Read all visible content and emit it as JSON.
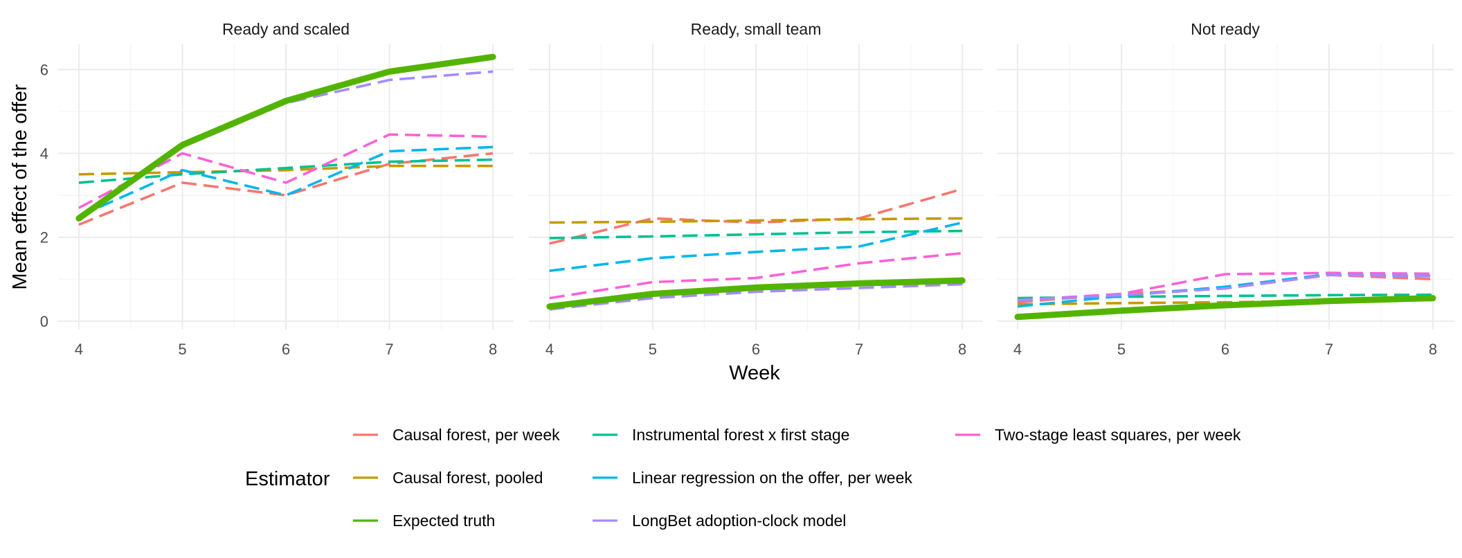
{
  "chart_data": {
    "type": "line",
    "xlabel": "Week",
    "ylabel": "Mean effect of the offer",
    "x": [
      4,
      5,
      6,
      7,
      8
    ],
    "xlim": [
      3.8,
      8.2
    ],
    "ylim": [
      -0.2,
      6.6
    ],
    "x_ticks": [
      4,
      5,
      6,
      7,
      8
    ],
    "y_ticks": [
      0,
      2,
      4,
      6
    ],
    "grid": true,
    "legend_title": "Estimator",
    "legend_position": "bottom",
    "series_styles": [
      {
        "name": "Causal forest, per week",
        "color": "#F8766D",
        "dash": true
      },
      {
        "name": "Causal forest, pooled",
        "color": "#C49A00",
        "dash": true
      },
      {
        "name": "Expected truth",
        "color": "#53B400",
        "dash": false
      },
      {
        "name": "Instrumental forest x first stage",
        "color": "#00C094",
        "dash": true
      },
      {
        "name": "Linear regression on the offer, per week",
        "color": "#00B6EB",
        "dash": true
      },
      {
        "name": "LongBet adoption-clock model",
        "color": "#A58AFF",
        "dash": true
      },
      {
        "name": "Two-stage least squares, per week",
        "color": "#FB61D7",
        "dash": true
      }
    ],
    "panels": [
      {
        "title": "Ready and scaled",
        "series": [
          {
            "name": "Causal forest, per week",
            "values": [
              2.3,
              3.3,
              3.0,
              3.75,
              4.0
            ]
          },
          {
            "name": "Causal forest, pooled",
            "values": [
              3.5,
              3.55,
              3.6,
              3.7,
              3.7
            ]
          },
          {
            "name": "Instrumental forest x first stage",
            "values": [
              3.3,
              3.5,
              3.65,
              3.8,
              3.85
            ]
          },
          {
            "name": "Linear regression on the offer, per week",
            "values": [
              2.5,
              3.6,
              3.0,
              4.05,
              4.15
            ]
          },
          {
            "name": "Two-stage least squares, per week",
            "values": [
              2.7,
              4.0,
              3.3,
              4.45,
              4.4
            ]
          },
          {
            "name": "LongBet adoption-clock model",
            "values": [
              2.45,
              4.15,
              5.2,
              5.75,
              5.95
            ]
          },
          {
            "name": "Expected truth",
            "values": [
              2.45,
              4.2,
              5.25,
              5.95,
              6.3
            ]
          }
        ]
      },
      {
        "title": "Ready, small team",
        "series": [
          {
            "name": "Causal forest, per week",
            "values": [
              1.85,
              2.45,
              2.35,
              2.45,
              3.15
            ]
          },
          {
            "name": "Causal forest, pooled",
            "values": [
              2.35,
              2.37,
              2.4,
              2.43,
              2.45
            ]
          },
          {
            "name": "Instrumental forest x first stage",
            "values": [
              1.98,
              2.02,
              2.07,
              2.12,
              2.15
            ]
          },
          {
            "name": "Linear regression on the offer, per week",
            "values": [
              1.2,
              1.5,
              1.65,
              1.78,
              2.35
            ]
          },
          {
            "name": "Two-stage least squares, per week",
            "values": [
              0.55,
              0.93,
              1.03,
              1.38,
              1.62
            ]
          },
          {
            "name": "LongBet adoption-clock model",
            "values": [
              0.28,
              0.55,
              0.7,
              0.79,
              0.88
            ]
          },
          {
            "name": "Expected truth",
            "values": [
              0.35,
              0.65,
              0.8,
              0.9,
              0.97
            ]
          }
        ]
      },
      {
        "title": "Not ready",
        "series": [
          {
            "name": "Causal forest, per week",
            "values": [
              0.45,
              0.65,
              0.78,
              1.1,
              1.0
            ]
          },
          {
            "name": "Causal forest, pooled",
            "values": [
              0.4,
              0.43,
              0.45,
              0.48,
              0.5
            ]
          },
          {
            "name": "Instrumental forest x first stage",
            "values": [
              0.55,
              0.58,
              0.6,
              0.62,
              0.63
            ]
          },
          {
            "name": "Linear regression on the offer, per week",
            "values": [
              0.35,
              0.6,
              0.82,
              1.12,
              1.07
            ]
          },
          {
            "name": "Two-stage least squares, per week",
            "values": [
              0.5,
              0.65,
              1.12,
              1.15,
              1.13
            ]
          },
          {
            "name": "LongBet adoption-clock model",
            "values": [
              0.5,
              0.62,
              0.78,
              1.1,
              1.08
            ]
          },
          {
            "name": "Expected truth",
            "values": [
              0.1,
              0.25,
              0.38,
              0.48,
              0.55
            ]
          }
        ]
      }
    ]
  }
}
